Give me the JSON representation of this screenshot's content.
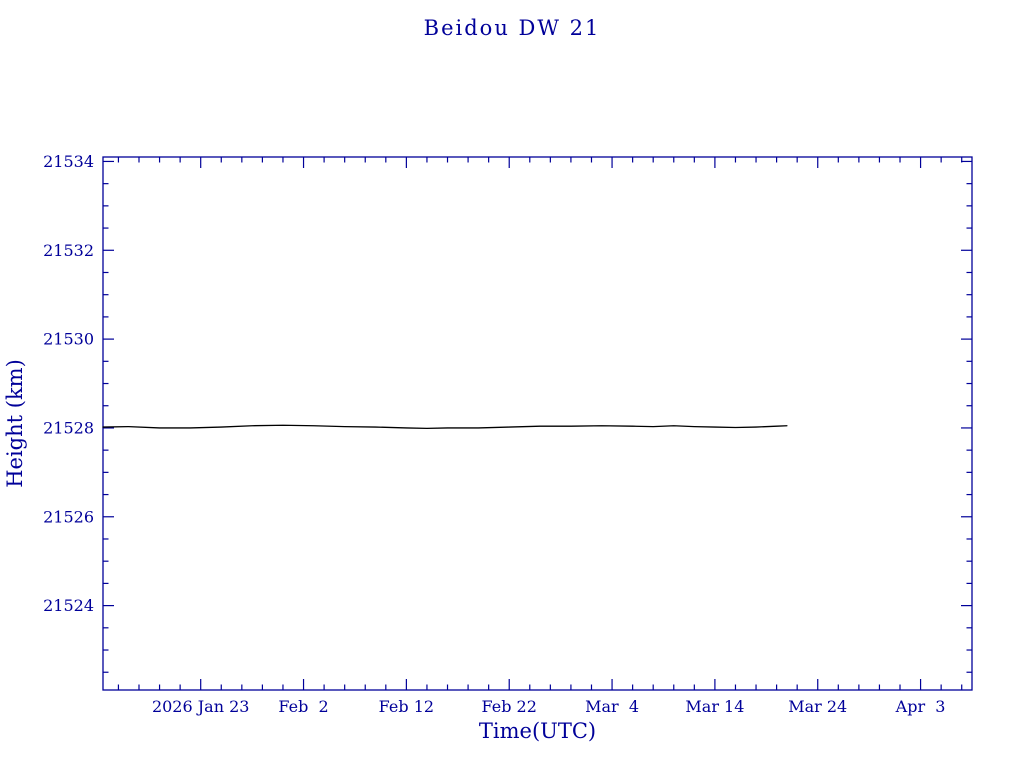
{
  "page": {
    "title": "Beidou DW 21"
  },
  "chart_data": {
    "type": "line",
    "title": "Beidou DW 21",
    "xlabel": "Time(UTC)",
    "ylabel": "Height (km)",
    "legend": "none",
    "grid": "off",
    "x_axis": {
      "tick_labels": [
        "2026 Jan 23",
        "Feb  2",
        "Feb 12",
        "Feb 22",
        "Mar  4",
        "Mar 14",
        "Mar 24",
        "Apr  3"
      ],
      "tick_positions_days": [
        0,
        10,
        20,
        30,
        40,
        50,
        60,
        70
      ],
      "minor_step_days": 2,
      "xlim_days": [
        -9.5,
        75
      ]
    },
    "y_axis": {
      "ticks": [
        21524,
        21526,
        21528,
        21530,
        21532,
        21534
      ],
      "tick_labels": [
        "21524",
        "21526",
        "21528",
        "21530",
        "21532",
        "21534"
      ],
      "minor_step": 0.5,
      "ylim": [
        21522.1,
        21534.1
      ]
    },
    "series": [
      {
        "name": "Beidou DW 21 height",
        "color": "#000000",
        "x_days": [
          -9.5,
          -7,
          -4,
          -1,
          2,
          5,
          8,
          11,
          14,
          17,
          20,
          22,
          24,
          27,
          30,
          33,
          36,
          39,
          42,
          44,
          46,
          48,
          50,
          52,
          54,
          56,
          57
        ],
        "y_km": [
          21528.02,
          21528.03,
          21528.0,
          21528.0,
          21528.02,
          21528.05,
          21528.06,
          21528.05,
          21528.03,
          21528.02,
          21528.0,
          21527.99,
          21528.0,
          21528.0,
          21528.02,
          21528.04,
          21528.04,
          21528.05,
          21528.04,
          21528.03,
          21528.05,
          21528.03,
          21528.02,
          21528.01,
          21528.02,
          21528.04,
          21528.05
        ]
      }
    ],
    "colors": {
      "axis": "#000099",
      "text": "#000099",
      "line": "#000000",
      "background": "#ffffff"
    }
  }
}
